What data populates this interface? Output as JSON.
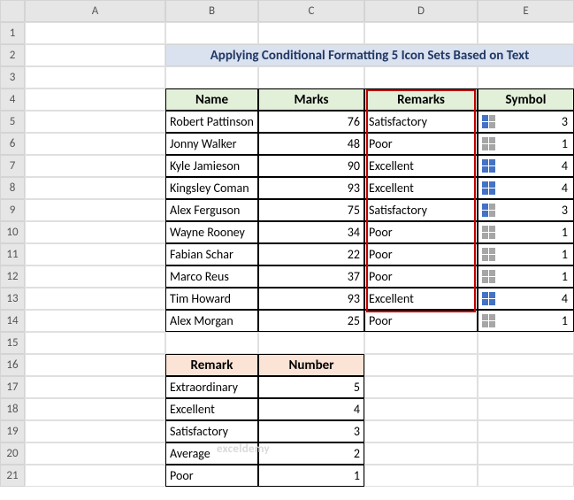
{
  "columns": [
    "A",
    "B",
    "C",
    "D",
    "E"
  ],
  "row_count": 21,
  "title": "Applying Conditional Formatting 5 Icon Sets Based on Text",
  "main_headers": [
    "Name",
    "Marks",
    "Remarks",
    "Symbol"
  ],
  "main_rows": [
    {
      "name": "Robert Pattinson",
      "marks": 76,
      "remarks": "Satisfactory",
      "symbol": 3
    },
    {
      "name": "Jonny Walker",
      "marks": 48,
      "remarks": "Poor",
      "symbol": 1
    },
    {
      "name": "Kyle Jamieson",
      "marks": 90,
      "remarks": "Excellent",
      "symbol": 4
    },
    {
      "name": "Kingsley Coman",
      "marks": 93,
      "remarks": "Excellent",
      "symbol": 4
    },
    {
      "name": "Alex Ferguson",
      "marks": 75,
      "remarks": "Satisfactory",
      "symbol": 3
    },
    {
      "name": "Wayne Rooney",
      "marks": 34,
      "remarks": "Poor",
      "symbol": 1
    },
    {
      "name": "Fabian Schar",
      "marks": 22,
      "remarks": "Poor",
      "symbol": 1
    },
    {
      "name": "Marco Reus",
      "marks": 37,
      "remarks": "Poor",
      "symbol": 1
    },
    {
      "name": "Tim Howard",
      "marks": 93,
      "remarks": "Excellent",
      "symbol": 4
    },
    {
      "name": "Alex Morgan",
      "marks": 25,
      "remarks": "Poor",
      "symbol": 1
    }
  ],
  "lookup_headers": [
    "Remark",
    "Number"
  ],
  "lookup_rows": [
    {
      "remark": "Extraordinary",
      "number": 5
    },
    {
      "remark": "Excellent",
      "number": 4
    },
    {
      "remark": "Satisfactory",
      "number": 3
    },
    {
      "remark": "Average",
      "number": 2
    },
    {
      "remark": "Poor",
      "number": 1
    }
  ],
  "icon_colors": {
    "on": "#4472c4",
    "off": "#a6a6a6"
  },
  "colors": {
    "title_bg": "#dae1ef",
    "title_fg": "#203864",
    "hdr_green": "#e2efd9",
    "hdr_peach": "#fbe3d5",
    "grid": "#e0e0e0",
    "highlight": "#c00000"
  },
  "watermark": "exceldemy"
}
